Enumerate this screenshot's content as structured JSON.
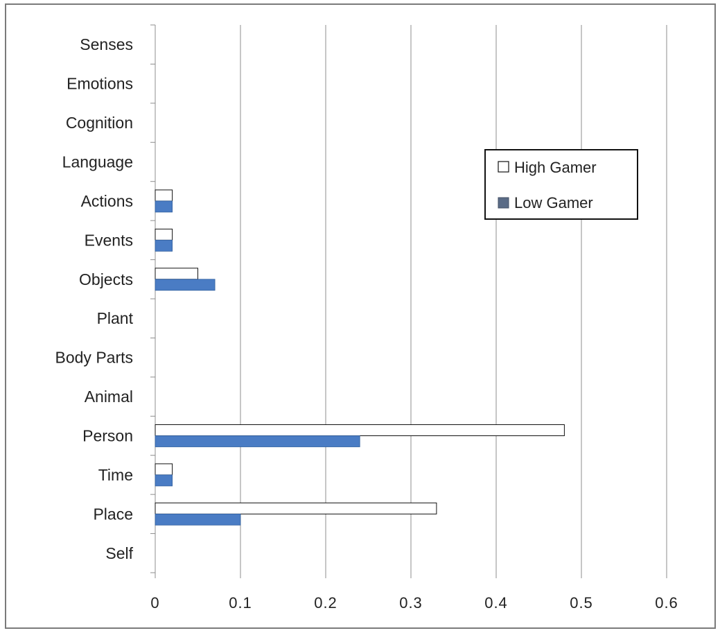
{
  "chart_data": {
    "type": "bar",
    "orientation": "horizontal",
    "categories": [
      "Self",
      "Place",
      "Time",
      "Person",
      "Animal",
      "Body Parts",
      "Plant",
      "Objects",
      "Events",
      "Actions",
      "Language",
      "Cognition",
      "Emotions",
      "Senses"
    ],
    "series": [
      {
        "name": "High Gamer",
        "values": [
          0,
          0.33,
          0.02,
          0.48,
          0,
          0,
          0,
          0.05,
          0.02,
          0.02,
          0,
          0,
          0,
          0
        ],
        "color": "#ffffff"
      },
      {
        "name": "Low Gamer",
        "values": [
          0,
          0.1,
          0.02,
          0.24,
          0,
          0,
          0,
          0.07,
          0.02,
          0.02,
          0,
          0,
          0,
          0
        ],
        "color": "#4a7cc4"
      }
    ],
    "title": "",
    "xlabel": "",
    "ylabel": "",
    "xlim": [
      0,
      0.6
    ],
    "x_ticks": [
      "0",
      "0.1",
      "0.2",
      "0.3",
      "0.4",
      "0.5",
      "0.6"
    ],
    "grid": true,
    "legend_position": "top-right"
  }
}
